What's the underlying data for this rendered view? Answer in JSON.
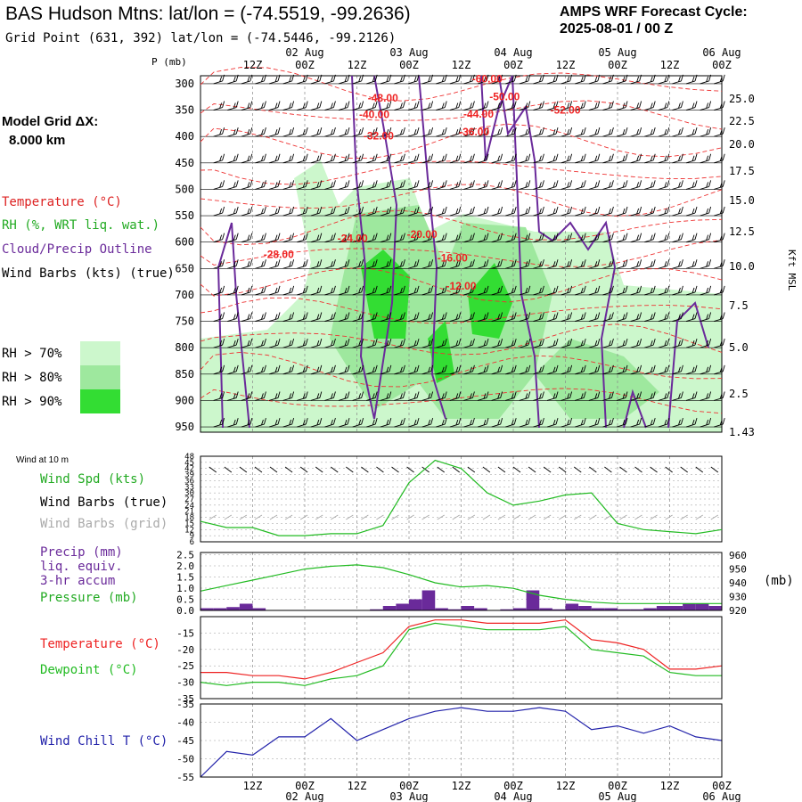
{
  "header": {
    "title": "BAS Hudson Mtns:  lat/lon = (-74.5519, -99.2636)",
    "grid_point": "Grid Point (631, 392) lat/lon = (-74.5446, -99.2126)",
    "cycle_label": "AMPS WRF Forecast Cycle:",
    "cycle_value": "2025-08-01 / 00  Z"
  },
  "legend": {
    "model_grid": "Model Grid ΔX:",
    "model_dx": "8.000 km",
    "temperature": "Temperature (°C)",
    "rh": "RH (%, WRT liq. wat.)",
    "cloud": "Cloud/Precip Outline",
    "wind": "Wind Barbs (kts) (true)",
    "rh70": "RH > 70%",
    "rh80": "RH > 80%",
    "rh90": "RH > 90%",
    "colors": {
      "rh70": "#ccf7cc",
      "rh80": "#9ee89e",
      "rh90": "#33dd33"
    }
  },
  "time_axis": {
    "top_ticks": [
      "12Z",
      "00Z",
      "12Z",
      "00Z",
      "12Z",
      "00Z",
      "12Z",
      "00Z",
      "12Z",
      "00Z"
    ],
    "dates": [
      "02 Aug",
      "03 Aug",
      "04 Aug",
      "05 Aug",
      "06 Aug"
    ]
  },
  "chart_data": [
    {
      "type": "heatmap",
      "ylabel_left": "P (mb)",
      "ylabel_right": "Kft MSL",
      "y_ticks": [
        "300",
        "350",
        "400",
        "450",
        "500",
        "550",
        "600",
        "650",
        "700",
        "750",
        "800",
        "850",
        "900",
        "950"
      ],
      "right_ticks": [
        "25.0",
        "22.5",
        "20.0",
        "17.5",
        "15.0",
        "12.5",
        "10.0",
        "7.5",
        "5.0",
        "2.5",
        "1.43"
      ],
      "temperature_labels": [
        {
          "text": "-60.00",
          "hour": 66,
          "p": 298
        },
        {
          "text": "-48.00",
          "hour": 42,
          "p": 334
        },
        {
          "text": "-50.00",
          "hour": 70,
          "p": 331
        },
        {
          "text": "-40.00",
          "hour": 40,
          "p": 365
        },
        {
          "text": "-44.00",
          "hour": 64,
          "p": 364
        },
        {
          "text": "-52.00",
          "hour": 84,
          "p": 357
        },
        {
          "text": "-36.00",
          "hour": 63,
          "p": 398
        },
        {
          "text": "-32.00",
          "hour": 41,
          "p": 406
        },
        {
          "text": "-20.00",
          "hour": 51,
          "p": 592
        },
        {
          "text": "-24.00",
          "hour": 35,
          "p": 600
        },
        {
          "text": "-28.00",
          "hour": 18,
          "p": 630
        },
        {
          "text": "-16.00",
          "hour": 58,
          "p": 637
        },
        {
          "text": "-12.00",
          "hour": 60,
          "p": 690
        }
      ]
    },
    {
      "type": "line",
      "label": "Wind at 10 m",
      "y_ticks": [
        "48",
        "45",
        "42",
        "39",
        "36",
        "33",
        "30",
        "27",
        "24",
        "21",
        "18",
        "15",
        "12",
        "9",
        "6"
      ],
      "series": [
        {
          "name": "Wind Spd (kts)",
          "color": "#22bb22",
          "x": [
            0,
            6,
            12,
            18,
            24,
            30,
            36,
            42,
            48,
            54,
            60,
            66,
            72,
            78,
            84,
            90,
            96,
            102,
            108,
            114,
            120
          ],
          "values": [
            16,
            13,
            13,
            9,
            9,
            10,
            10,
            14,
            35,
            46,
            42,
            30,
            24,
            26,
            29,
            30,
            15,
            12,
            11,
            10,
            12
          ]
        }
      ],
      "other_labels": [
        "Wind Barbs (true)",
        "Wind Barbs (grid)"
      ]
    },
    {
      "type": "bar",
      "ylabel_left": "Precip (mm)",
      "ylabel_lines": [
        "Precip (mm)",
        "liq. equiv.",
        "3-hr accum",
        "Pressure (mb)"
      ],
      "y_ticks": [
        "2.5",
        "2.0",
        "1.5",
        "1.0",
        "0.5",
        "0.0"
      ],
      "right_ticks": [
        "960",
        "950",
        "940",
        "930",
        "920"
      ],
      "right_unit": "(mb)",
      "precip": {
        "x": [
          3,
          6,
          9,
          12,
          15,
          42,
          45,
          48,
          51,
          54,
          57,
          60,
          63,
          66,
          72,
          75,
          78,
          81,
          84,
          87,
          90,
          93,
          96,
          99,
          102,
          105,
          108,
          111,
          114,
          117,
          120
        ],
        "values": [
          0.1,
          0.1,
          0.15,
          0.3,
          0.1,
          0.05,
          0.2,
          0.3,
          0.5,
          0.9,
          0.1,
          0.05,
          0.2,
          0.1,
          0.05,
          0.1,
          0.9,
          0.1,
          0.05,
          0.3,
          0.2,
          0.1,
          0.1,
          0.05,
          0.05,
          0.1,
          0.2,
          0.2,
          0.3,
          0.3,
          0.2
        ]
      },
      "pressure": {
        "x": [
          0,
          6,
          12,
          18,
          24,
          30,
          36,
          42,
          48,
          54,
          60,
          66,
          72,
          78,
          84,
          90,
          96,
          102,
          108,
          114,
          120
        ],
        "values": [
          934,
          938,
          942,
          946,
          950,
          952,
          953,
          951,
          946,
          940,
          937,
          938,
          936,
          931,
          928,
          926,
          925,
          925,
          925,
          925,
          925
        ]
      }
    },
    {
      "type": "line",
      "y_ticks": [
        "-15",
        "-20",
        "-25",
        "-30",
        "-35"
      ],
      "series": [
        {
          "name": "Temperature (°C)",
          "color": "#ee2222",
          "x": [
            0,
            6,
            12,
            18,
            24,
            30,
            36,
            42,
            48,
            54,
            60,
            66,
            72,
            78,
            84,
            90,
            96,
            102,
            108,
            114,
            120
          ],
          "values": [
            -27,
            -27,
            -28,
            -28,
            -29,
            -27,
            -24,
            -21,
            -13,
            -11,
            -11,
            -12,
            -12,
            -12,
            -11,
            -17,
            -18,
            -20,
            -26,
            -26,
            -25
          ]
        },
        {
          "name": "Dewpoint (°C)",
          "color": "#22bb22",
          "x": [
            0,
            6,
            12,
            18,
            24,
            30,
            36,
            42,
            48,
            54,
            60,
            66,
            72,
            78,
            84,
            90,
            96,
            102,
            108,
            114,
            120
          ],
          "values": [
            -30,
            -31,
            -30,
            -30,
            -31,
            -29,
            -28,
            -25,
            -14,
            -12,
            -13,
            -14,
            -14,
            -14,
            -13,
            -20,
            -21,
            -22,
            -27,
            -28,
            -28
          ]
        }
      ]
    },
    {
      "type": "line",
      "y_ticks": [
        "-35",
        "-40",
        "-45",
        "-50",
        "-55"
      ],
      "series": [
        {
          "name": "Wind Chill T (°C)",
          "color": "#2222aa",
          "x": [
            0,
            6,
            12,
            18,
            24,
            30,
            36,
            42,
            48,
            54,
            60,
            66,
            72,
            78,
            84,
            90,
            96,
            102,
            108,
            114,
            120
          ],
          "values": [
            -55,
            -48,
            -49,
            -44,
            -44,
            -39,
            -45,
            -42,
            -39,
            -37,
            -36,
            -37,
            -37,
            -36,
            -37,
            -42,
            -41,
            -43,
            -41,
            -44,
            -45
          ]
        }
      ]
    }
  ],
  "bottom_axis": {
    "ticks": [
      "12Z",
      "00Z",
      "12Z",
      "00Z",
      "12Z",
      "00Z",
      "12Z",
      "00Z",
      "12Z",
      "00Z"
    ],
    "dates": [
      "02 Aug",
      "03 Aug",
      "04 Aug",
      "05 Aug",
      "06 Aug"
    ]
  }
}
